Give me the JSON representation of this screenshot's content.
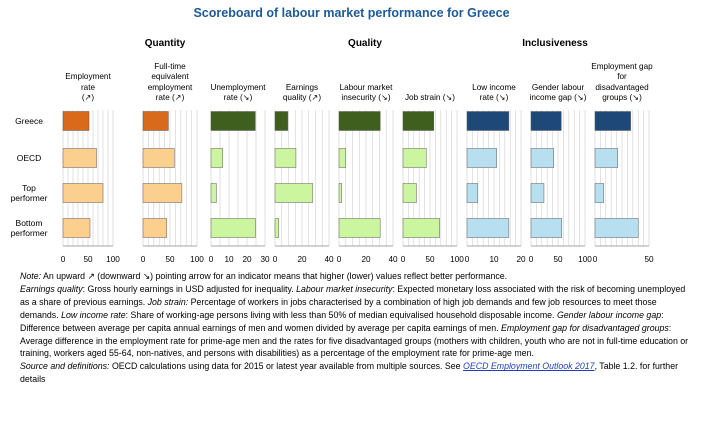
{
  "title": "Scoreboard of labour market performance for Greece",
  "groups": {
    "quantity": "Quantity",
    "quality": "Quality",
    "inclusiveness": "Inclusiveness"
  },
  "colors": {
    "greece_quantity": "#d96a1b",
    "other_quantity": "#fbd08e",
    "greece_quality": "#3e5f1e",
    "other_quality": "#ccf5a0",
    "greece_inclusiveness": "#1d4878",
    "other_inclusiveness": "#b8dff0",
    "bar_outline": "#5a5a5a",
    "grid": "#cfcfcf",
    "title": "#1f5a96"
  },
  "chart_data": {
    "type": "bar",
    "orientation": "horizontal",
    "title": "Scoreboard of labour market performance for Greece",
    "categories": [
      "Greece",
      "OECD",
      "Top performer",
      "Bottom performer"
    ],
    "row_labels": [
      [
        "Greece"
      ],
      [
        "OECD"
      ],
      [
        "Top",
        "performer"
      ],
      [
        "Bottom",
        "performer"
      ]
    ],
    "panels": [
      {
        "group": "quantity",
        "label": [
          "Employment",
          "rate",
          "(↗)"
        ],
        "xlim": [
          0,
          100
        ],
        "ticks": [
          "0",
          "50",
          "100"
        ],
        "values": [
          52,
          67,
          80,
          54
        ]
      },
      {
        "group": "quantity",
        "label": [
          "Full-time",
          "equivalent",
          "employment",
          "rate (↗)"
        ],
        "xlim": [
          0,
          100
        ],
        "ticks": [
          "0",
          "50",
          "100"
        ],
        "values": [
          47,
          58,
          72,
          44
        ]
      },
      {
        "group": "quality",
        "label": [
          "Unemployment",
          "rate (↘)"
        ],
        "xlim": [
          0,
          30
        ],
        "ticks": [
          "0",
          "10",
          "20",
          "30"
        ],
        "values": [
          24.6,
          6.5,
          3.0,
          24.6
        ]
      },
      {
        "group": "quality",
        "label": [
          "Earnings",
          "quality (↗)"
        ],
        "xlim": [
          0,
          40
        ],
        "ticks": [
          "0",
          "20",
          "40"
        ],
        "values": [
          9.5,
          15.5,
          28,
          2.8
        ]
      },
      {
        "group": "quality",
        "label": [
          "Labour market",
          "insecurity (↘)"
        ],
        "xlim": [
          0,
          40
        ],
        "ticks": [
          "0",
          "20",
          "40"
        ],
        "values": [
          30.5,
          5,
          2,
          30.5
        ]
      },
      {
        "group": "quality",
        "label": [
          "Job strain (↘)"
        ],
        "xlim": [
          0,
          100
        ],
        "ticks": [
          "0",
          "50",
          "100"
        ],
        "values": [
          57,
          43,
          25,
          68
        ]
      },
      {
        "group": "inclusiveness",
        "label": [
          "Low income",
          "rate (↘)"
        ],
        "xlim": [
          0,
          20
        ],
        "ticks": [
          "0",
          "10",
          "20"
        ],
        "values": [
          15.5,
          11,
          4,
          15.5
        ]
      },
      {
        "group": "inclusiveness",
        "label": [
          "Gender labour",
          "income gap (↘)"
        ],
        "xlim": [
          0,
          100
        ],
        "ticks": [
          "0",
          "50",
          "100"
        ],
        "values": [
          56,
          42,
          24,
          57
        ]
      },
      {
        "group": "inclusiveness",
        "label": [
          "Employment gap",
          "for",
          "disadvantaged",
          "groups (↘)"
        ],
        "xlim": [
          0,
          50
        ],
        "ticks": [
          "0",
          "50"
        ],
        "values": [
          33,
          21,
          8,
          40
        ]
      }
    ]
  },
  "notes": {
    "p1": [
      {
        "t": "Note:",
        "i": true
      },
      {
        "t": " An upward ↗ (downward ↘) pointing arrow for an indicator means that higher (lower) values reflect better performance."
      }
    ],
    "p2": [
      {
        "t": "Earnings quality",
        "i": true
      },
      {
        "t": ": Gross hourly earnings in USD adjusted for inequality. "
      },
      {
        "t": "Labour market insecurity",
        "i": true
      },
      {
        "t": ": Expected monetary loss associated with the risk of becoming unemployed as a share of previous earnings. "
      },
      {
        "t": "Job strain:",
        "i": true
      },
      {
        "t": " Percentage of workers in jobs characterised by a combination of high job demands and few job resources to meet those demands. "
      },
      {
        "t": "Low income rate",
        "i": true
      },
      {
        "t": ": Share of working-age persons living with less than 50% of median equivalised household disposable income. "
      },
      {
        "t": "Gender labour income gap",
        "i": true
      },
      {
        "t": ": Difference between average per capita annual earnings of men and women divided by average per capita earnings of men. "
      },
      {
        "t": "Employment gap for disadvantaged groups",
        "i": true
      },
      {
        "t": ": Average difference in the employment rate for prime-age men and the rates for five disadvantaged groups (mothers with children, youth who are not in full-time education or training, workers aged 55-64, non-natives, and persons with disabilities) as a percentage of the employment rate for prime-age men."
      }
    ],
    "p3": [
      {
        "t": "Source and definitions:",
        "i": true
      },
      {
        "t": " OECD calculations using data for 2015 or latest year available from multiple sources. See "
      },
      {
        "t": "OECD Employment Outlook 2017",
        "link": true
      },
      {
        "t": ", Table 1.2. for further details"
      }
    ]
  }
}
